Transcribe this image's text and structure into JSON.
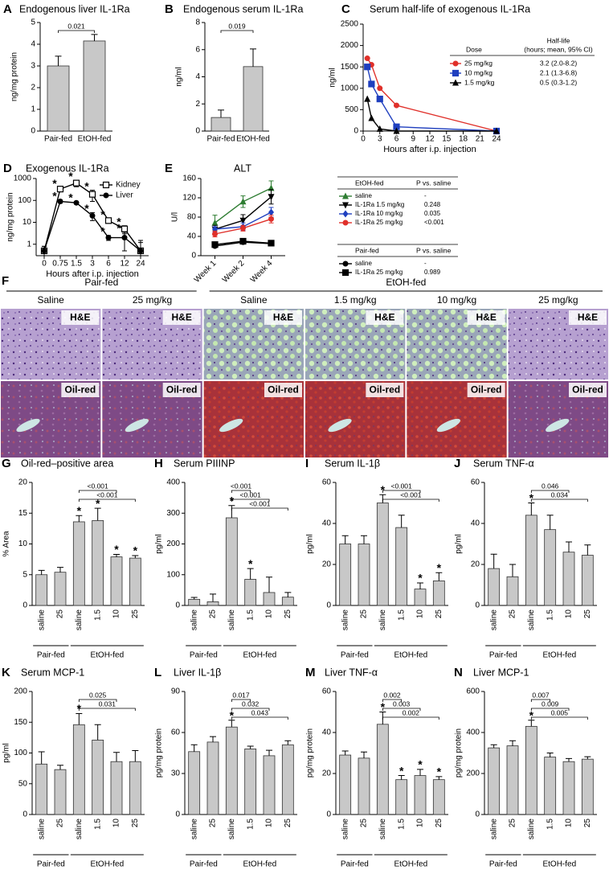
{
  "chart_data": [
    {
      "panel": "A",
      "type": "bar",
      "title": "Endogenous liver IL-1Ra",
      "ylabel": "ng/mg protein",
      "categories": [
        "Pair-fed",
        "EtOH-fed"
      ],
      "values": [
        3.0,
        4.15
      ],
      "errors": [
        0.45,
        0.3
      ],
      "p_values": [
        null,
        "0.021"
      ],
      "color": "#c8c8c8",
      "ylim": [
        0,
        5
      ],
      "yticks": [
        0,
        1,
        2,
        3,
        4,
        5
      ]
    },
    {
      "panel": "B",
      "type": "bar",
      "title": "Endogenous serum IL-1Ra",
      "ylabel": "ng/ml",
      "categories": [
        "Pair-fed",
        "EtOH-fed"
      ],
      "values": [
        1.0,
        4.75
      ],
      "errors": [
        0.55,
        1.3
      ],
      "p_values": [
        null,
        "0.019"
      ],
      "color": "#c8c8c8",
      "ylim": [
        0,
        8
      ],
      "yticks": [
        0,
        2,
        4,
        6,
        8
      ]
    },
    {
      "panel": "C",
      "type": "line",
      "title": "Serum half-life of exogenous IL-1Ra",
      "ylabel": "ng/ml",
      "xlabel": "Hours after i.p. injection",
      "xlim": [
        0,
        24
      ],
      "xticks": [
        0,
        3,
        6,
        9,
        12,
        15,
        18,
        21,
        24
      ],
      "ylim": [
        0,
        2500
      ],
      "yticks": [
        0,
        500,
        1000,
        1500,
        2000,
        2500
      ],
      "dose_header": "Dose",
      "halflife_header": [
        "Half-life",
        "(hours; mean, 95% CI)"
      ],
      "series": [
        {
          "name": "25 mg/kg",
          "color": "#e0302a",
          "marker": "circle",
          "half_life": "3.2 (2.0-8.2)",
          "x": [
            0.75,
            1.5,
            3,
            6,
            24
          ],
          "values": [
            1700,
            1550,
            1000,
            600,
            0
          ]
        },
        {
          "name": "10 mg/kg",
          "color": "#1f3fbf",
          "marker": "square",
          "half_life": "2.1 (1.3-6.8)",
          "x": [
            0.75,
            1.5,
            3,
            6,
            24
          ],
          "values": [
            1500,
            1100,
            750,
            100,
            0
          ]
        },
        {
          "name": "1.5 mg/kg",
          "color": "#000000",
          "marker": "triangle-up",
          "half_life": "0.5 (0.3-1.2)",
          "x": [
            0.75,
            1.5,
            3,
            6,
            24
          ],
          "values": [
            750,
            300,
            50,
            0,
            0
          ]
        }
      ]
    },
    {
      "panel": "D",
      "type": "line",
      "title": "Exogenous IL-1Ra",
      "ylabel": "ng/mg protein",
      "xlabel": "Hours after i.p. injection",
      "categories": [
        "0",
        "0.75",
        "1.5",
        "3",
        "6",
        "12",
        "24"
      ],
      "log_scale": true,
      "ylim": [
        0.3,
        1000
      ],
      "yticks": [
        1,
        10,
        100,
        1000
      ],
      "series": [
        {
          "name": "Kidney",
          "color": "#000000",
          "marker": "square-open",
          "values": [
            0.5,
            330,
            620,
            190,
            12,
            5,
            0.5
          ],
          "errors": [
            0.3,
            60,
            200,
            100,
            3,
            2,
            1
          ],
          "significance": [
            null,
            "*",
            "*",
            "*",
            "*",
            "*",
            null
          ]
        },
        {
          "name": "Liver",
          "color": "#000000",
          "marker": "circle",
          "values": [
            0.5,
            90,
            78,
            20,
            2,
            2,
            0.5
          ],
          "errors": [
            0.3,
            15,
            10,
            8,
            0.5,
            1.5,
            0.7
          ],
          "significance": [
            null,
            "*",
            "*",
            "*",
            "*",
            "*",
            null
          ]
        }
      ]
    },
    {
      "panel": "E",
      "type": "line",
      "title": "ALT",
      "ylabel": "U/l",
      "categories": [
        "Week 1",
        "Week 2",
        "Week 4"
      ],
      "ylim": [
        0,
        160
      ],
      "yticks": [
        0,
        40,
        80,
        120,
        160
      ],
      "p_header": "P vs. saline",
      "groups": [
        {
          "name": "EtOH-fed",
          "series": [
            {
              "name": "saline",
              "color": "#2e7d32",
              "marker": "triangle-up",
              "p": "-",
              "values": [
                68,
                112,
                140
              ],
              "errors": [
                16,
                12,
                15
              ]
            },
            {
              "name": "IL-1Ra 1.5 mg/kg",
              "color": "#000000",
              "marker": "triangle-down",
              "p": "0.248",
              "values": [
                55,
                73,
                122
              ],
              "errors": [
                8,
                12,
                15
              ]
            },
            {
              "name": "IL-1Ra 10 mg/kg",
              "color": "#1f3fbf",
              "marker": "diamond",
              "p": "0.035",
              "values": [
                55,
                60,
                90
              ],
              "errors": [
                5,
                8,
                10
              ]
            },
            {
              "name": "IL-1Ra 25 mg/kg",
              "color": "#e0302a",
              "marker": "circle",
              "p": "<0.001",
              "values": [
                45,
                57,
                76
              ],
              "errors": [
                6,
                6,
                8
              ]
            }
          ]
        },
        {
          "name": "Pair-fed",
          "series": [
            {
              "name": "saline",
              "color": "#000000",
              "marker": "circle",
              "p": "-",
              "values": [
                20,
                28,
                25
              ],
              "errors": [
                3,
                4,
                3
              ]
            },
            {
              "name": "IL-1Ra 25 mg/kg",
              "color": "#000000",
              "marker": "square",
              "p": "0.989",
              "values": [
                23,
                30,
                26
              ],
              "errors": [
                3,
                5,
                3
              ]
            }
          ]
        }
      ]
    },
    {
      "panel": "G",
      "type": "bar",
      "title": "Oil-red–positive area",
      "ylabel": "% Area",
      "color": "#c8c8c8",
      "ylim": [
        0,
        20
      ],
      "yticks": [
        0,
        5,
        10,
        15,
        20
      ],
      "groups": [
        {
          "name": "Pair-fed",
          "categories": [
            "saline",
            "25"
          ],
          "values": [
            5.0,
            5.4
          ],
          "errors": [
            0.7,
            0.8
          ]
        },
        {
          "name": "EtOH-fed",
          "categories": [
            "saline",
            "1.5",
            "10",
            "25"
          ],
          "values": [
            13.6,
            13.8,
            7.9,
            7.7
          ],
          "errors": [
            1.0,
            2.0,
            0.4,
            0.4
          ],
          "significance": [
            "*",
            "*",
            "*",
            "*"
          ],
          "p_values": [
            null,
            null,
            "<0.001",
            "<0.001"
          ]
        }
      ]
    },
    {
      "panel": "H",
      "type": "bar",
      "title": "Serum PIIINP",
      "ylabel": "pg/ml",
      "color": "#c8c8c8",
      "ylim": [
        0,
        400
      ],
      "yticks": [
        0,
        100,
        200,
        300,
        400
      ],
      "groups": [
        {
          "name": "Pair-fed",
          "categories": [
            "saline",
            "25"
          ],
          "values": [
            20,
            12
          ],
          "errors": [
            6,
            25
          ]
        },
        {
          "name": "EtOH-fed",
          "categories": [
            "saline",
            "1.5",
            "10",
            "25"
          ],
          "values": [
            285,
            85,
            42,
            27
          ],
          "errors": [
            40,
            35,
            50,
            15
          ],
          "significance": [
            "*",
            "*",
            null,
            null
          ],
          "p_values": [
            null,
            "<0.001",
            "<0.001",
            "<0.001"
          ]
        }
      ]
    },
    {
      "panel": "I",
      "type": "bar",
      "title": "Serum IL-1β",
      "ylabel": "pg/ml",
      "color": "#c8c8c8",
      "ylim": [
        0,
        60
      ],
      "yticks": [
        0,
        20,
        40,
        60
      ],
      "groups": [
        {
          "name": "Pair-fed",
          "categories": [
            "saline",
            "25"
          ],
          "values": [
            30,
            30
          ],
          "errors": [
            4,
            4
          ]
        },
        {
          "name": "EtOH-fed",
          "categories": [
            "saline",
            "1.5",
            "10",
            "25"
          ],
          "values": [
            50,
            38,
            8,
            12
          ],
          "errors": [
            4,
            6,
            3,
            4
          ],
          "significance": [
            "*",
            null,
            "*",
            "*"
          ],
          "p_values": [
            null,
            null,
            "<0.001",
            "<0.001"
          ]
        }
      ]
    },
    {
      "panel": "J",
      "type": "bar",
      "title": "Serum TNF-α",
      "ylabel": "pg/ml",
      "color": "#c8c8c8",
      "ylim": [
        0,
        60
      ],
      "yticks": [
        0,
        20,
        40,
        60
      ],
      "groups": [
        {
          "name": "Pair-fed",
          "categories": [
            "saline",
            "25"
          ],
          "values": [
            18,
            14
          ],
          "errors": [
            7,
            6
          ]
        },
        {
          "name": "EtOH-fed",
          "categories": [
            "saline",
            "1.5",
            "10",
            "25"
          ],
          "values": [
            44,
            37,
            26,
            24.5
          ],
          "errors": [
            6,
            7,
            5,
            5
          ],
          "significance": [
            "*",
            null,
            null,
            null
          ],
          "p_values": [
            null,
            null,
            "0.046",
            "0.034"
          ]
        }
      ]
    },
    {
      "panel": "K",
      "type": "bar",
      "title": "Serum MCP-1",
      "ylabel": "pg/ml",
      "color": "#c8c8c8",
      "ylim": [
        0,
        200
      ],
      "yticks": [
        0,
        50,
        100,
        150,
        200
      ],
      "groups": [
        {
          "name": "Pair-fed",
          "categories": [
            "saline",
            "25"
          ],
          "values": [
            82,
            73
          ],
          "errors": [
            20,
            7
          ]
        },
        {
          "name": "EtOH-fed",
          "categories": [
            "saline",
            "1.5",
            "10",
            "25"
          ],
          "values": [
            146,
            121,
            86,
            86
          ],
          "errors": [
            18,
            25,
            15,
            18
          ],
          "significance": [
            "*",
            null,
            null,
            null
          ],
          "p_values": [
            null,
            null,
            "0.025",
            "0.031"
          ]
        }
      ]
    },
    {
      "panel": "L",
      "type": "bar",
      "title": "Liver IL-1β",
      "ylabel": "pg/mg protein",
      "color": "#c8c8c8",
      "ylim": [
        0,
        90
      ],
      "yticks": [
        0,
        30,
        60,
        90
      ],
      "groups": [
        {
          "name": "Pair-fed",
          "categories": [
            "saline",
            "25"
          ],
          "values": [
            46,
            53
          ],
          "errors": [
            5,
            4
          ]
        },
        {
          "name": "EtOH-fed",
          "categories": [
            "saline",
            "1.5",
            "10",
            "25"
          ],
          "values": [
            64,
            48,
            43,
            51
          ],
          "errors": [
            5,
            2,
            4,
            3
          ],
          "significance": [
            "*",
            null,
            null,
            null
          ],
          "p_values": [
            null,
            "0.017",
            "0.032",
            "0.043"
          ]
        }
      ]
    },
    {
      "panel": "M",
      "type": "bar",
      "title": "Liver TNF-α",
      "ylabel": "pg/mg protein",
      "color": "#c8c8c8",
      "ylim": [
        0,
        60
      ],
      "yticks": [
        0,
        20,
        40,
        60
      ],
      "groups": [
        {
          "name": "Pair-fed",
          "categories": [
            "saline",
            "25"
          ],
          "values": [
            29,
            27.5
          ],
          "errors": [
            2,
            3
          ]
        },
        {
          "name": "EtOH-fed",
          "categories": [
            "saline",
            "1.5",
            "10",
            "25"
          ],
          "values": [
            44,
            17,
            19,
            17
          ],
          "errors": [
            6,
            2,
            3,
            1.5
          ],
          "significance": [
            "*",
            "*",
            "*",
            "*"
          ],
          "p_values": [
            null,
            "0.002",
            "0.003",
            "0.002"
          ]
        }
      ]
    },
    {
      "panel": "N",
      "type": "bar",
      "title": "Liver MCP-1",
      "ylabel": "pg/mg protein",
      "color": "#c8c8c8",
      "ylim": [
        0,
        600
      ],
      "yticks": [
        0,
        200,
        400,
        600
      ],
      "groups": [
        {
          "name": "Pair-fed",
          "categories": [
            "saline",
            "25"
          ],
          "values": [
            325,
            335
          ],
          "errors": [
            15,
            25
          ]
        },
        {
          "name": "EtOH-fed",
          "categories": [
            "saline",
            "1.5",
            "10",
            "25"
          ],
          "values": [
            430,
            280,
            258,
            270
          ],
          "errors": [
            30,
            20,
            15,
            12
          ],
          "significance": [
            "*",
            null,
            null,
            null
          ],
          "p_values": [
            null,
            "0.007",
            "0.009",
            "0.005"
          ]
        }
      ]
    }
  ],
  "figure_f": {
    "panel": "F",
    "groups": [
      {
        "name": "Pair-fed",
        "columns": [
          "Saline",
          "25 mg/kg"
        ]
      },
      {
        "name": "EtOH-fed",
        "columns": [
          "Saline",
          "1.5 mg/kg",
          "10 mg/kg",
          "25 mg/kg"
        ]
      }
    ],
    "stains": [
      "H&E",
      "Oil-red"
    ]
  }
}
